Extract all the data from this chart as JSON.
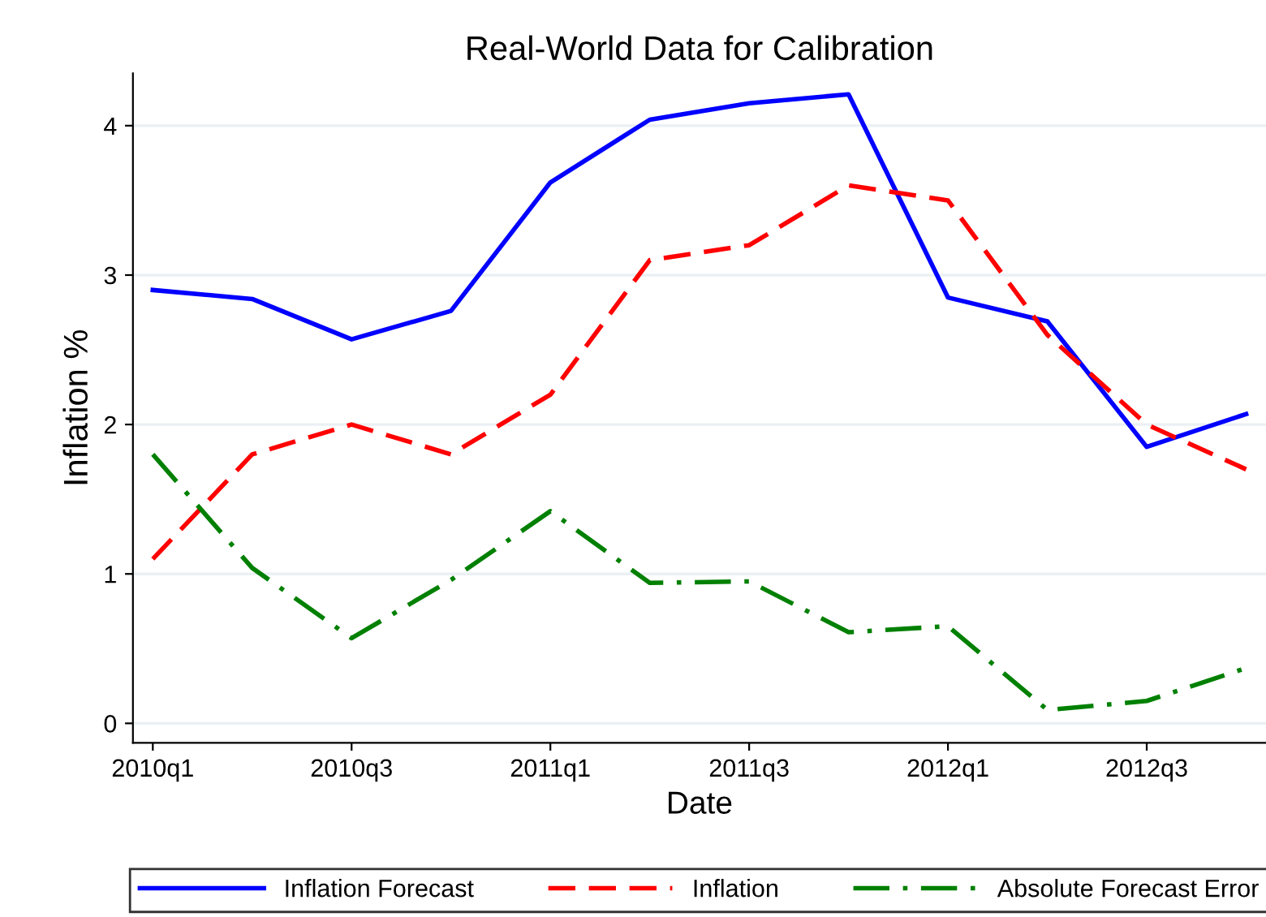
{
  "chart_data": {
    "type": "line",
    "title": "Real-World Data for Calibration",
    "xlabel": "Date",
    "ylabel": "Inflation %",
    "categories": [
      "2010q1",
      null,
      "2010q3",
      null,
      "2011q1",
      null,
      "2011q3",
      null,
      "2012q1",
      null,
      "2012q3",
      null
    ],
    "series": [
      {
        "name": "Inflation Forecast",
        "color": "#0000ff",
        "line_style": "solid",
        "values": [
          2.9,
          2.84,
          2.57,
          2.76,
          3.62,
          4.04,
          4.15,
          4.21,
          2.85,
          2.69,
          1.85,
          2.07
        ]
      },
      {
        "name": "Inflation",
        "color": "#ff0000",
        "line_style": "dashed",
        "values": [
          1.1,
          1.8,
          2.0,
          1.8,
          2.2,
          3.1,
          3.2,
          3.6,
          3.5,
          2.6,
          2.0,
          1.7
        ]
      },
      {
        "name": "Absolute Forecast Error",
        "color": "#008000",
        "line_style": "dashdot",
        "values": [
          1.8,
          1.04,
          0.57,
          0.96,
          1.42,
          0.94,
          0.95,
          0.61,
          0.65,
          0.09,
          0.15,
          0.37
        ]
      }
    ],
    "ylim": [
      -0.13,
      4.35
    ],
    "yticks": [
      0,
      1,
      2,
      3,
      4
    ],
    "grid": "y",
    "legend": "bottom",
    "marker": "none"
  }
}
